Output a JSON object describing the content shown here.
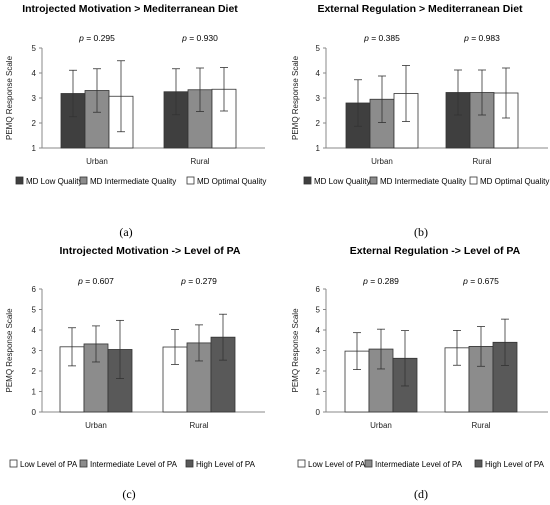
{
  "captions": [
    "(a)",
    "(b)",
    "(c)",
    "(d)"
  ],
  "colors": {
    "low_quality": "#3f3f3f",
    "intermediate": "#8c8c8c",
    "optimal_white": "#ffffff",
    "high_level": "#595959",
    "axis": "#888888"
  },
  "chart_data": [
    {
      "type": "bar",
      "title": "Introjected Motivation > Mediterranean Diet",
      "ylabel": "PEMQ Response Scale",
      "ylim": [
        1,
        5
      ],
      "yticks": [
        "1",
        "2",
        "3",
        "4",
        "5"
      ],
      "categories": [
        "Urban",
        "Rural"
      ],
      "pvalues": [
        "0.295",
        "0.930"
      ],
      "series": [
        {
          "name": "MD Low Quality",
          "values": [
            3.18,
            3.25
          ],
          "errors": [
            0.93,
            0.92
          ]
        },
        {
          "name": "MD Intermediate Quality",
          "values": [
            3.3,
            3.33
          ],
          "errors": [
            0.87,
            0.87
          ]
        },
        {
          "name": "MD Optimal Quality",
          "values": [
            3.07,
            3.35
          ],
          "errors": [
            1.42,
            0.87
          ]
        }
      ],
      "legend_position": "bottom"
    },
    {
      "type": "bar",
      "title": "External Regulation > Mediterranean Diet",
      "ylabel": "PEMQ Response Scale",
      "ylim": [
        1,
        5
      ],
      "yticks": [
        "1",
        "2",
        "3",
        "4",
        "5"
      ],
      "categories": [
        "Urban",
        "Rural"
      ],
      "pvalues": [
        "0.385",
        "0.983"
      ],
      "series": [
        {
          "name": "MD Low Quality",
          "values": [
            2.8,
            3.22
          ],
          "errors": [
            0.93,
            0.9
          ]
        },
        {
          "name": "MD Intermediate Quality",
          "values": [
            2.95,
            3.22
          ],
          "errors": [
            0.93,
            0.9
          ]
        },
        {
          "name": "MD Optimal Quality",
          "values": [
            3.18,
            3.2
          ],
          "errors": [
            1.12,
            1.0
          ]
        }
      ],
      "legend_position": "bottom"
    },
    {
      "type": "bar",
      "title": "Introjected Motivation -> Level of PA",
      "ylabel": "PEMQ Response Scale",
      "ylim": [
        0,
        6
      ],
      "yticks": [
        "0",
        "1",
        "2",
        "3",
        "4",
        "5",
        "6"
      ],
      "categories": [
        "Urban",
        "Rural"
      ],
      "pvalues": [
        "0.607",
        "0.279"
      ],
      "series": [
        {
          "name": "Low Level of PA",
          "values": [
            3.18,
            3.17
          ],
          "errors": [
            0.93,
            0.85
          ]
        },
        {
          "name": "Intermediate Level of PA",
          "values": [
            3.32,
            3.37
          ],
          "errors": [
            0.88,
            0.88
          ]
        },
        {
          "name": "High Level of PA",
          "values": [
            3.05,
            3.65
          ],
          "errors": [
            1.42,
            1.12
          ]
        }
      ],
      "legend_position": "bottom"
    },
    {
      "type": "bar",
      "title": "External Regulation -> Level of PA",
      "ylabel": "PEMQ Response Scale",
      "ylim": [
        0,
        6
      ],
      "yticks": [
        "0",
        "1",
        "2",
        "3",
        "4",
        "5",
        "6"
      ],
      "categories": [
        "Urban",
        "Rural"
      ],
      "pvalues": [
        "0.289",
        "0.675"
      ],
      "series": [
        {
          "name": "Low Level of PA",
          "values": [
            2.97,
            3.13
          ],
          "errors": [
            0.9,
            0.85
          ]
        },
        {
          "name": "Intermediate Level of PA",
          "values": [
            3.07,
            3.2
          ],
          "errors": [
            0.97,
            0.97
          ]
        },
        {
          "name": "High Level of PA",
          "values": [
            2.62,
            3.4
          ],
          "errors": [
            1.35,
            1.13
          ]
        }
      ],
      "legend_position": "bottom"
    }
  ]
}
